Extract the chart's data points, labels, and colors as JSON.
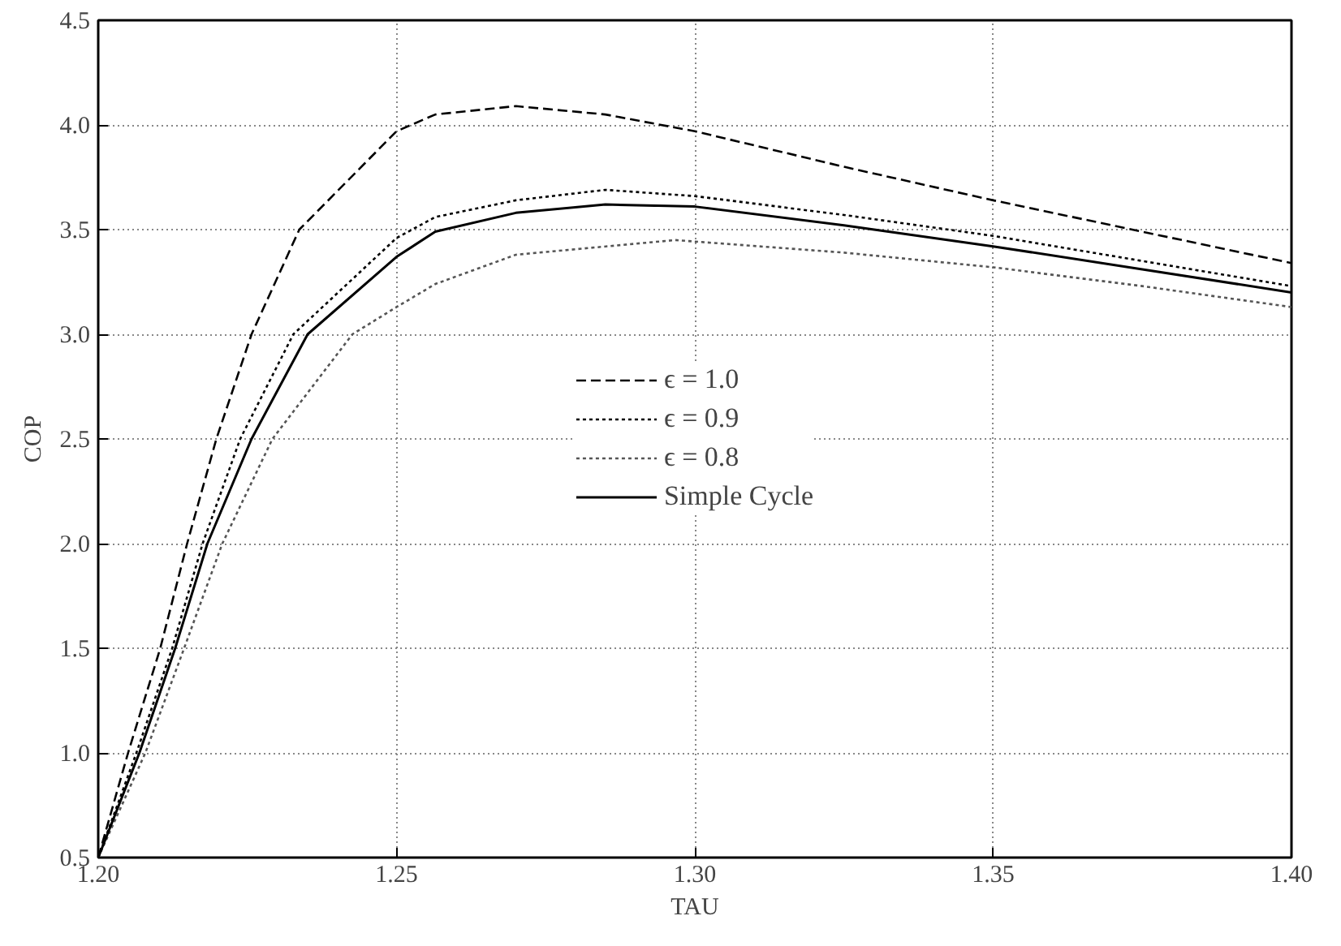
{
  "chart_data": {
    "type": "line",
    "xlabel": "TAU",
    "ylabel": "COP",
    "xlim": [
      1.2,
      1.4
    ],
    "ylim": [
      0.5,
      4.5
    ],
    "xticks": [
      {
        "value": 1.2,
        "label": "1.20"
      },
      {
        "value": 1.25,
        "label": "1.25"
      },
      {
        "value": 1.3,
        "label": "1.30"
      },
      {
        "value": 1.35,
        "label": "1.35"
      },
      {
        "value": 1.4,
        "label": "1.40"
      }
    ],
    "yticks": [
      {
        "value": 0.5,
        "label": "0.5"
      },
      {
        "value": 1.0,
        "label": "1.0"
      },
      {
        "value": 1.5,
        "label": "1.5"
      },
      {
        "value": 2.0,
        "label": "2.0"
      },
      {
        "value": 2.5,
        "label": "2.5"
      },
      {
        "value": 3.0,
        "label": "3.0"
      },
      {
        "value": 3.5,
        "label": "3.5"
      },
      {
        "value": 4.0,
        "label": "4.0"
      },
      {
        "value": 4.5,
        "label": "4.5"
      }
    ],
    "grid": true,
    "legend": "center",
    "marker": "none",
    "series": [
      {
        "name": "ϵ = 1.0",
        "color": "#000000",
        "line_style": "dashed",
        "x": [
          1.2,
          1.205,
          1.2104,
          1.2149,
          1.2198,
          1.2257,
          1.2337,
          1.25,
          1.2565,
          1.27,
          1.285,
          1.3,
          1.325,
          1.35,
          1.375,
          1.4
        ],
        "values": [
          0.5,
          1.0,
          1.5,
          2.0,
          2.5,
          3.0,
          3.5,
          3.97,
          4.05,
          4.09,
          4.05,
          3.97,
          3.8,
          3.64,
          3.49,
          3.34
        ]
      },
      {
        "name": "ϵ = 0.9",
        "color": "#000000",
        "line_style": "dotted",
        "x": [
          1.2,
          1.2064,
          1.2124,
          1.2175,
          1.2238,
          1.2327,
          1.25,
          1.2565,
          1.27,
          1.285,
          1.3,
          1.325,
          1.35,
          1.375,
          1.4
        ],
        "values": [
          0.5,
          1.0,
          1.5,
          2.0,
          2.5,
          3.0,
          3.46,
          3.56,
          3.64,
          3.69,
          3.66,
          3.57,
          3.47,
          3.35,
          3.23
        ]
      },
      {
        "name": "ϵ = 0.8",
        "color": "#555555",
        "line_style": "dotted",
        "x": [
          1.2,
          1.2079,
          1.2144,
          1.2208,
          1.2292,
          1.2426,
          1.25,
          1.2565,
          1.27,
          1.2967,
          1.325,
          1.35,
          1.375,
          1.4
        ],
        "values": [
          0.5,
          1.0,
          1.5,
          2.0,
          2.5,
          3.0,
          3.13,
          3.24,
          3.38,
          3.45,
          3.39,
          3.32,
          3.23,
          3.13
        ]
      },
      {
        "name": "Simple Cycle",
        "color": "#000000",
        "line_style": "solid",
        "x": [
          1.2,
          1.2069,
          1.2129,
          1.2183,
          1.2257,
          1.2351,
          1.25,
          1.2565,
          1.27,
          1.285,
          1.3,
          1.325,
          1.35,
          1.375,
          1.4
        ],
        "values": [
          0.5,
          1.0,
          1.5,
          2.0,
          2.5,
          3.0,
          3.37,
          3.49,
          3.58,
          3.62,
          3.61,
          3.52,
          3.42,
          3.31,
          3.2
        ]
      }
    ]
  }
}
